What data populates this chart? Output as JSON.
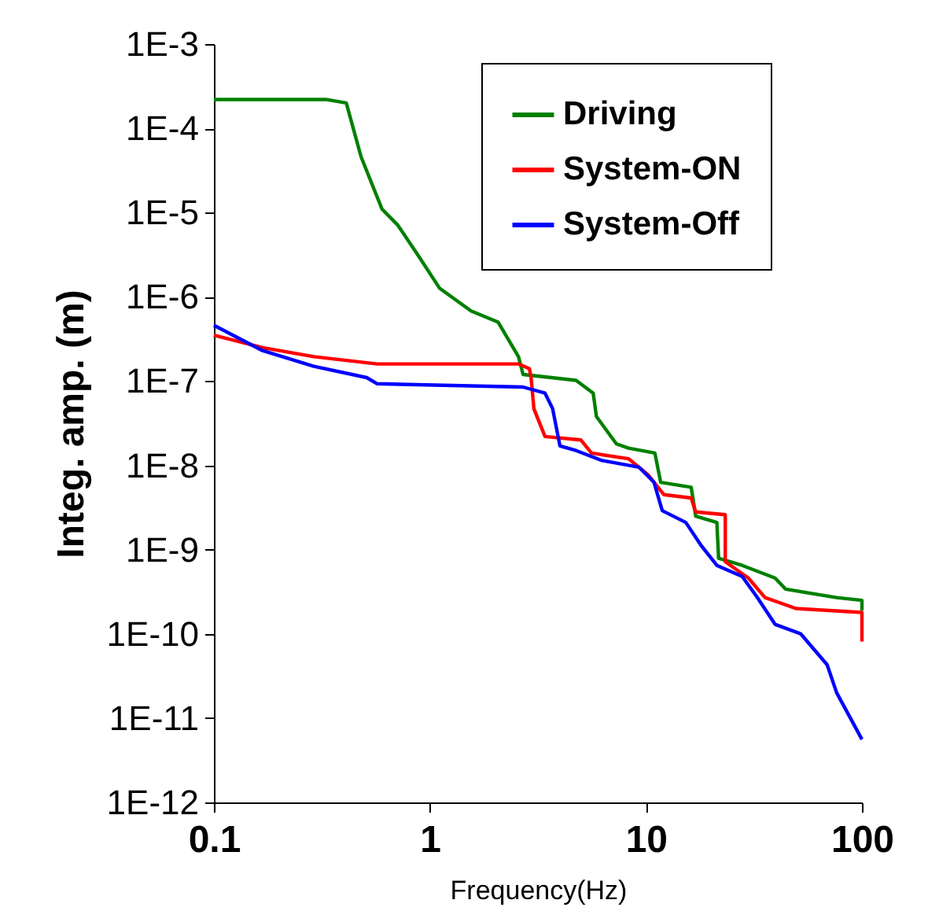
{
  "chart_data": {
    "type": "line",
    "xlabel": "Frequency(Hz)",
    "ylabel": "Integ. amp. (m)",
    "log": "xy",
    "grid": false,
    "legend": "top right",
    "marker": "none",
    "line_style": "solid",
    "xlim": [
      0.1,
      100
    ],
    "xticks": [
      0.1,
      1,
      10,
      100
    ],
    "ylim": [
      1e-12,
      0.001
    ],
    "yticks": [
      {
        "value": 1e-12,
        "label": "1E-12"
      },
      {
        "value": 1e-11,
        "label": "1E-11"
      },
      {
        "value": 1e-10,
        "label": "1E-10"
      },
      {
        "value": 1e-09,
        "label": "1E-9"
      },
      {
        "value": 1e-08,
        "label": "1E-8"
      },
      {
        "value": 1e-07,
        "label": "1E-7"
      },
      {
        "value": 1e-06,
        "label": "1E-6"
      },
      {
        "value": 1e-05,
        "label": "1E-5"
      },
      {
        "value": 0.0001,
        "label": "1E-4"
      },
      {
        "value": 0.001,
        "label": "1E-3"
      }
    ],
    "series": [
      {
        "name": "Driving",
        "color": "#008000",
        "x": [
          0.1,
          0.33,
          0.41,
          0.48,
          0.6,
          0.71,
          0.89,
          1.11,
          1.55,
          2.07,
          2.57,
          2.7,
          4.75,
          5.7,
          5.9,
          7.3,
          8.3,
          11,
          11.7,
          16.2,
          17,
          21.3,
          21.7,
          27.9,
          39.6,
          44.3,
          76.4,
          100,
          100
        ],
        "values": [
          0.00022,
          0.00022,
          0.0002,
          4.6e-05,
          1.1e-05,
          7.1e-06,
          3e-06,
          1.26e-06,
          6.8e-07,
          5e-07,
          1.95e-07,
          1.2e-07,
          1.02e-07,
          7.2e-08,
          3.8e-08,
          1.8e-08,
          1.6e-08,
          1.4e-08,
          6.3e-09,
          5.5e-09,
          2.5e-09,
          2.1e-09,
          7.9e-10,
          6.5e-10,
          4.6e-10,
          3.4e-10,
          2.7e-10,
          2.5e-10,
          1.9e-10
        ]
      },
      {
        "name": "System-ON",
        "color": "#ff0000",
        "x": [
          0.1,
          0.168,
          0.29,
          0.57,
          2.57,
          2.89,
          2.94,
          3.03,
          3.41,
          5.0,
          5.6,
          8.3,
          10.2,
          12.1,
          16.2,
          17,
          23.3,
          23.3,
          29.8,
          35.6,
          49.5,
          100,
          100
        ],
        "values": [
          3.5e-07,
          2.5e-07,
          1.95e-07,
          1.6e-07,
          1.6e-07,
          1.4e-07,
          1.1e-07,
          4.7e-08,
          2.2e-08,
          2e-08,
          1.4e-08,
          1.2e-08,
          7.8e-09,
          4.5e-09,
          4.1e-09,
          2.8e-09,
          2.6e-09,
          7.2e-10,
          4.6e-10,
          2.7e-10,
          2e-10,
          1.8e-10,
          8.1e-11
        ]
      },
      {
        "name": "System-Off",
        "color": "#0000ff",
        "x": [
          0.1,
          0.168,
          0.29,
          0.51,
          0.57,
          2.7,
          3.41,
          3.7,
          4.0,
          4.75,
          6.2,
          9.3,
          10.9,
          11.9,
          15.3,
          18.1,
          21.3,
          27.9,
          32.8,
          39.6,
          52.1,
          69,
          76.4,
          100
        ],
        "values": [
          4.6e-07,
          2.3e-07,
          1.5e-07,
          1.1e-07,
          9.3e-08,
          8.5e-08,
          7.2e-08,
          4.7e-08,
          1.7e-08,
          1.5e-08,
          1.15e-08,
          9.5e-09,
          6.3e-09,
          2.9e-09,
          2.1e-09,
          1.1e-09,
          6.5e-10,
          4.8e-10,
          2.7e-10,
          1.3e-10,
          1e-10,
          4.3e-11,
          2e-11,
          5.6e-12
        ]
      }
    ]
  }
}
